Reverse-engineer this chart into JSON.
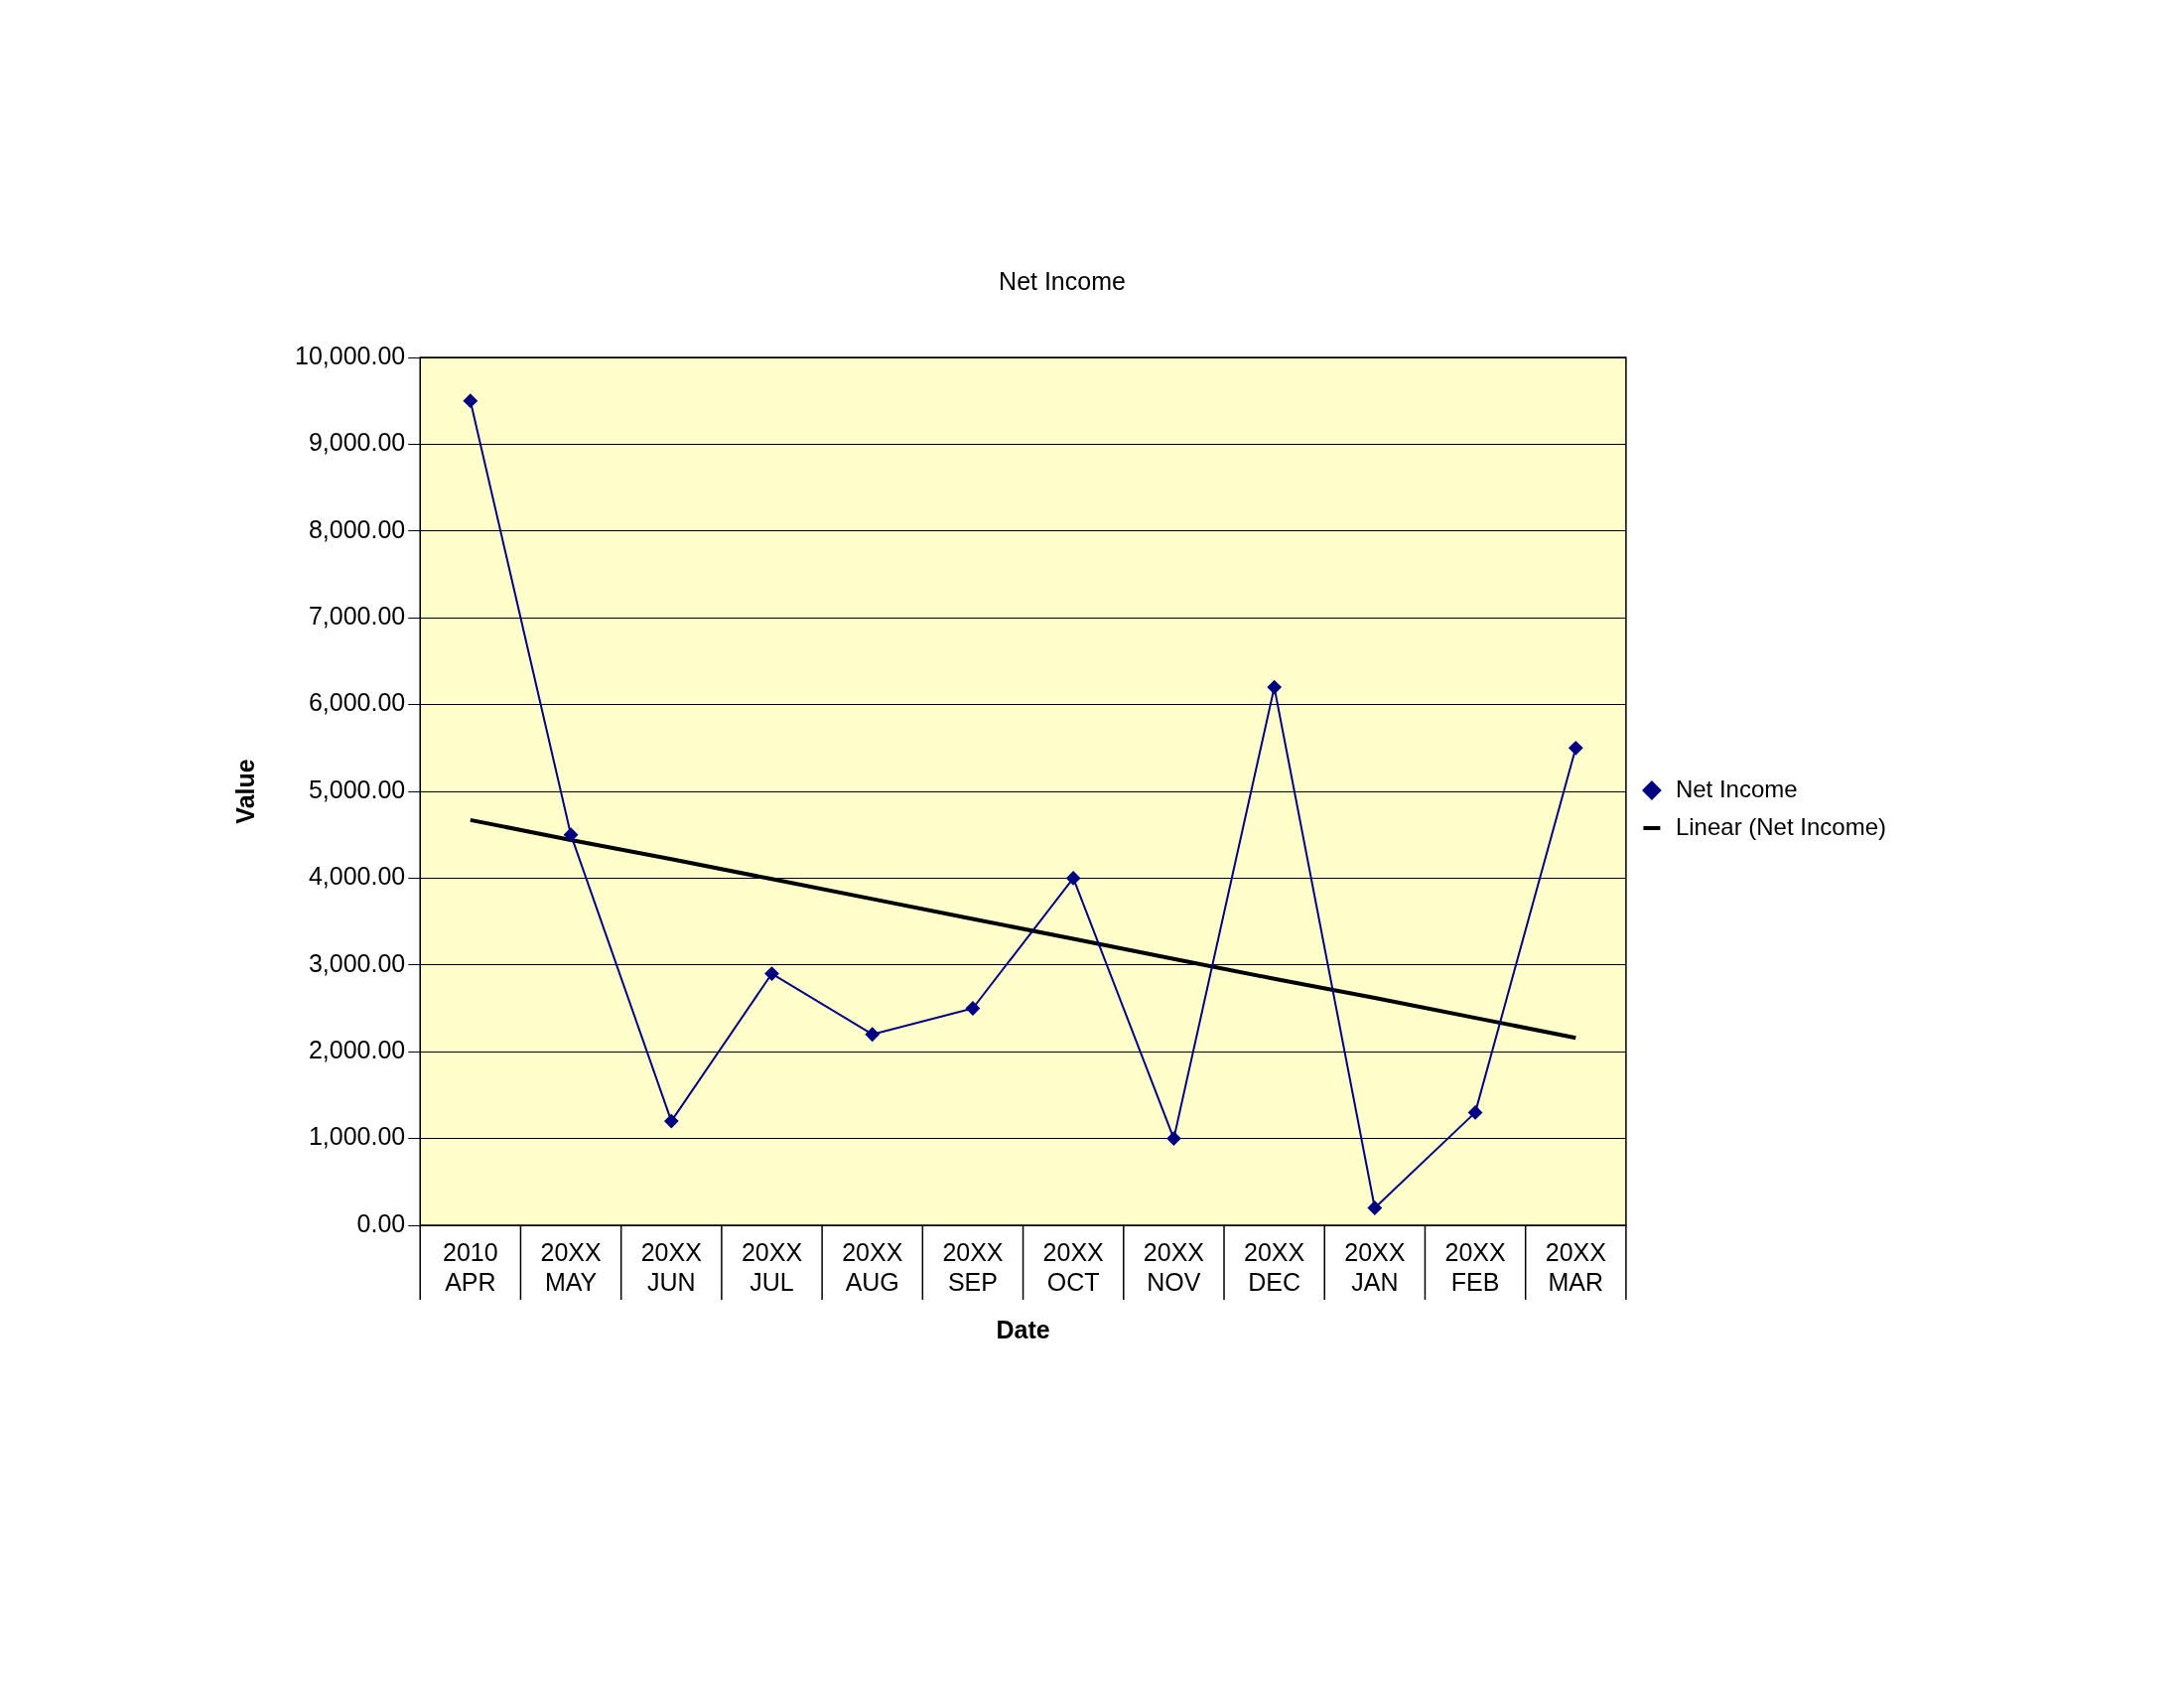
{
  "chart_data": {
    "type": "line",
    "title": "Net Income",
    "xlabel": "Date",
    "ylabel": "Value",
    "categories": [
      "2010\nAPR",
      "20XX\nMAY",
      "20XX\nJUN",
      "20XX\nJUL",
      "20XX\nAUG",
      "20XX\nSEP",
      "20XX\nOCT",
      "20XX\nNOV",
      "20XX\nDEC",
      "20XX\nJAN",
      "20XX\nFEB",
      "20XX\nMAR"
    ],
    "series": [
      {
        "name": "Net Income",
        "color": "#000080",
        "marker": "diamond",
        "values": [
          9500,
          4500,
          1200,
          2900,
          2200,
          2500,
          4000,
          1000,
          6200,
          200,
          1300,
          5500
        ]
      },
      {
        "name": "Linear (Net Income)",
        "type": "line",
        "color": "#000000",
        "marker": "none",
        "values": [
          4670,
          4440,
          4220,
          3990,
          3760,
          3530,
          3300,
          3070,
          2840,
          2620,
          2390,
          2160
        ]
      }
    ],
    "ylim": [
      0,
      10000
    ],
    "yticks": [
      {
        "value": 0,
        "label": "0.00"
      },
      {
        "value": 1000,
        "label": "1,000.00"
      },
      {
        "value": 2000,
        "label": "2,000.00"
      },
      {
        "value": 3000,
        "label": "3,000.00"
      },
      {
        "value": 4000,
        "label": "4,000.00"
      },
      {
        "value": 5000,
        "label": "5,000.00"
      },
      {
        "value": 6000,
        "label": "6,000.00"
      },
      {
        "value": 7000,
        "label": "7,000.00"
      },
      {
        "value": 8000,
        "label": "8,000.00"
      },
      {
        "value": 9000,
        "label": "9,000.00"
      },
      {
        "value": 10000,
        "label": "10,000.00"
      }
    ],
    "grid": "y",
    "legend": "right"
  }
}
